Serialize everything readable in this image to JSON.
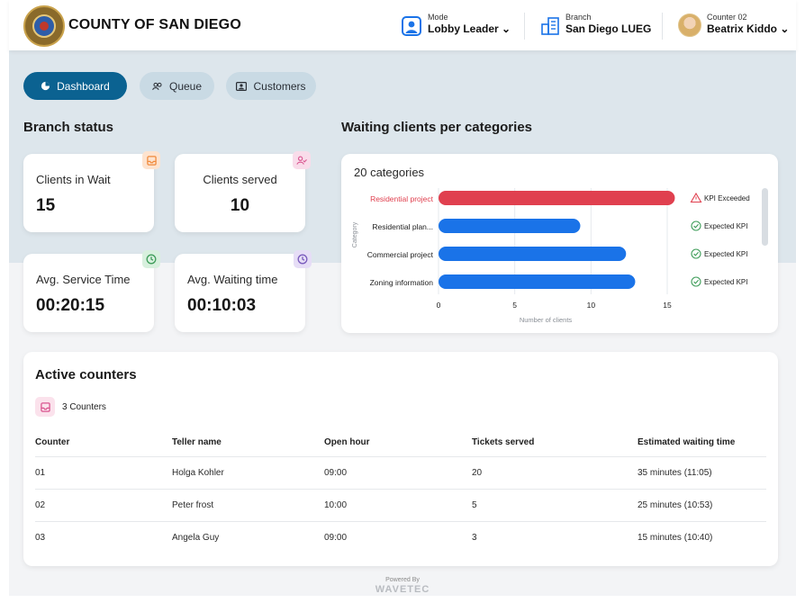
{
  "header": {
    "org_name": "COUNTY OF SAN DIEGO",
    "mode": {
      "label": "Mode",
      "value": "Lobby Leader"
    },
    "branch": {
      "label": "Branch",
      "value": "San Diego LUEG"
    },
    "counter": {
      "label": "Counter 02",
      "value": "Beatrix Kiddo"
    }
  },
  "nav": {
    "dashboard": "Dashboard",
    "queue": "Queue",
    "customers": "Customers"
  },
  "branch_status": {
    "title": "Branch status",
    "cards": [
      {
        "label": "Clients in Wait",
        "value": "15",
        "icon": "inbox-icon",
        "color": "#f5a25a"
      },
      {
        "label": "Clients served",
        "value": "10",
        "icon": "user-check-icon",
        "color": "#e06fa3"
      },
      {
        "label": "Avg. Service Time",
        "value": "00:20:15",
        "icon": "clock-icon",
        "color": "#4caf6a"
      },
      {
        "label": "Avg. Waiting time",
        "value": "00:10:03",
        "icon": "clock-icon",
        "color": "#8b6cc7"
      }
    ]
  },
  "waiting": {
    "title": "Waiting clients per categories",
    "subtitle": "20 categories"
  },
  "chart_data": {
    "type": "bar",
    "orientation": "horizontal",
    "categories": [
      "Residential project",
      "Residential plan...",
      "Commercial project",
      "Zoning information"
    ],
    "values": [
      15.5,
      9.3,
      12.3,
      12.9
    ],
    "xlabel": "Number of clients",
    "ylabel": "Category",
    "xticks": [
      0,
      5,
      10,
      15
    ],
    "xlim": [
      0,
      16
    ],
    "colors": [
      "#e0404f",
      "#1a73e8",
      "#1a73e8",
      "#1a73e8"
    ],
    "status": [
      "KPI Exceeded",
      "Expected KPI",
      "Expected KPI",
      "Expected KPI"
    ]
  },
  "counters": {
    "title": "Active counters",
    "count_label": "3 Counters",
    "columns": [
      "Counter",
      "Teller name",
      "Open hour",
      "Tickets served",
      "Estimated waiting time"
    ],
    "rows": [
      [
        "01",
        "Holga Kohler",
        "09:00",
        "20",
        "35 minutes (11:05)"
      ],
      [
        "02",
        "Peter frost",
        "10:00",
        "5",
        "25 minutes (10:53)"
      ],
      [
        "03",
        "Angela Guy",
        "09:00",
        "3",
        "15 minutes (10:40)"
      ]
    ]
  },
  "footer": {
    "powered_by": "Powered By",
    "brand": "WAVETEC"
  }
}
